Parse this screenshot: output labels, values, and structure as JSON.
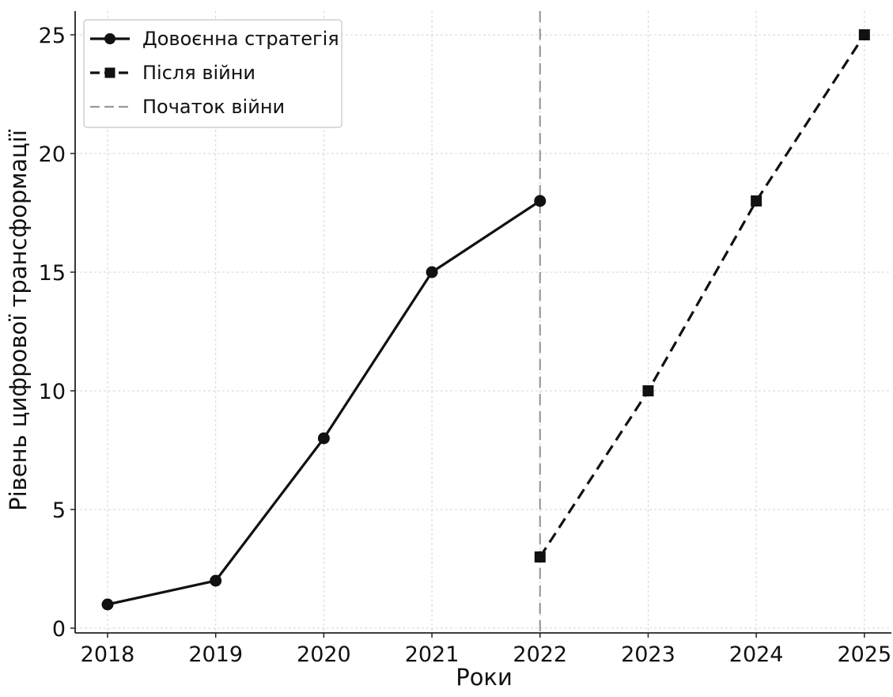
{
  "chart_data": {
    "type": "line",
    "xlabel": "Роки",
    "ylabel": "Рівень цифрової трансформації",
    "x_ticks": [
      "2018",
      "2019",
      "2020",
      "2021",
      "2022",
      "2023",
      "2024",
      "2025"
    ],
    "y_ticks": [
      "0",
      "5",
      "10",
      "15",
      "20",
      "25"
    ],
    "xlim": [
      2017.7,
      2025.25
    ],
    "ylim": [
      -0.2,
      26
    ],
    "grid": true,
    "legend_position": "top-left",
    "series": [
      {
        "name": "Довоєнна стратегія",
        "line_style": "solid",
        "marker": "circle",
        "color": "#111111",
        "x": [
          2018,
          2019,
          2020,
          2021,
          2022
        ],
        "y": [
          1,
          2,
          8,
          15,
          18
        ]
      },
      {
        "name": "Після війни",
        "line_style": "dashed",
        "marker": "square",
        "color": "#111111",
        "x": [
          2022,
          2023,
          2024,
          2025
        ],
        "y": [
          3,
          10,
          18,
          25
        ]
      }
    ],
    "reference_lines": [
      {
        "name": "Початок війни",
        "orientation": "vertical",
        "x": 2022,
        "line_style": "dashed",
        "color": "#9a9a9a"
      }
    ]
  }
}
